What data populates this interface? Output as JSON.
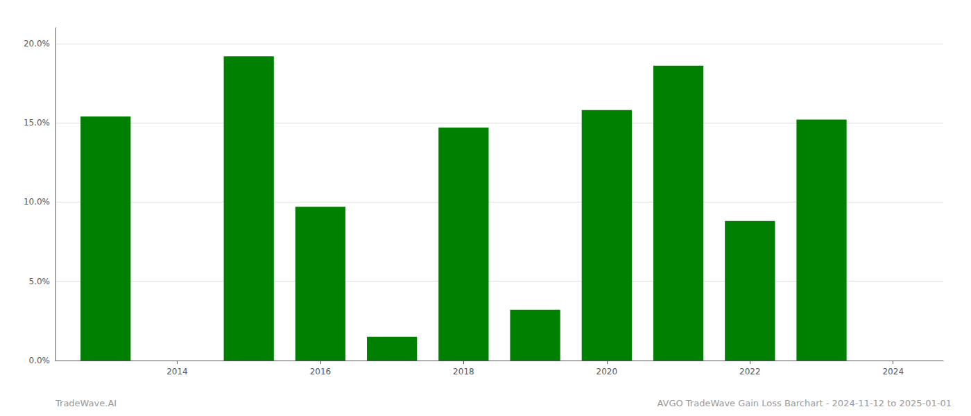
{
  "chart_data": {
    "type": "bar",
    "x": [
      2013,
      2015,
      2016,
      2017,
      2018,
      2019,
      2020,
      2021,
      2022,
      2023
    ],
    "values": [
      0.154,
      0.192,
      0.097,
      0.015,
      0.147,
      0.032,
      0.158,
      0.186,
      0.088,
      0.152
    ],
    "color": "#008000",
    "xlim": [
      2012.3,
      2024.7
    ],
    "xticks": [
      2014,
      2016,
      2018,
      2020,
      2022,
      2024
    ],
    "ylim": [
      0,
      0.21
    ],
    "yticks": [
      {
        "value": 0.0,
        "label": "0.0%"
      },
      {
        "value": 0.05,
        "label": "5.0%"
      },
      {
        "value": 0.1,
        "label": "10.0%"
      },
      {
        "value": 0.15,
        "label": "15.0%"
      },
      {
        "value": 0.2,
        "label": "20.0%"
      }
    ],
    "grid": true,
    "annotations": [
      "TradeWave.AI",
      "AVGO TradeWave Gain Loss Barchart - 2024-11-12 to 2025-01-01"
    ]
  }
}
